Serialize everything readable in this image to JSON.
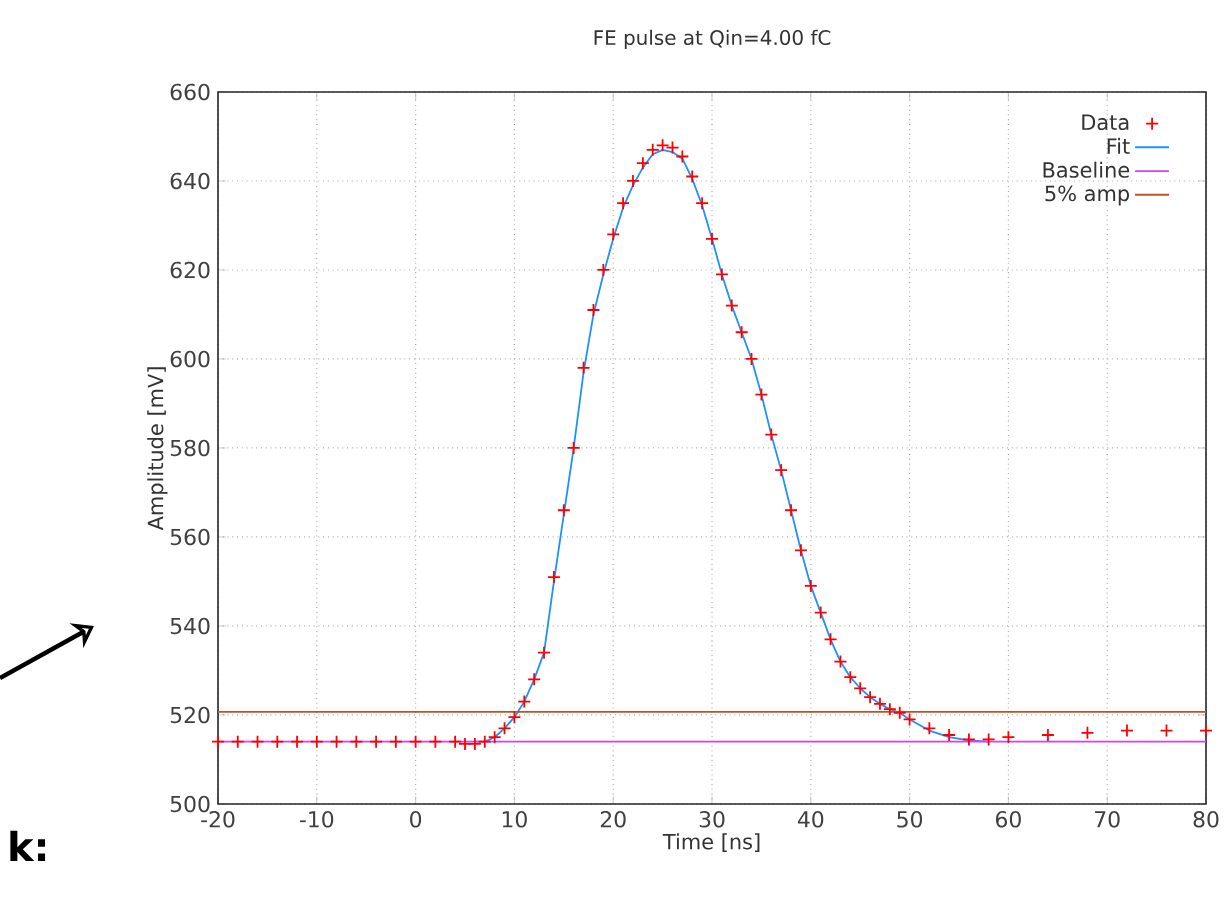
{
  "chart_data": {
    "type": "line",
    "title": "FE pulse at Qin=4.00 fC",
    "xlabel": "Time [ns]",
    "ylabel": "Amplitude [mV]",
    "xlim": [
      -20,
      80
    ],
    "ylim": [
      500,
      660
    ],
    "xticks": [
      -20,
      -10,
      0,
      10,
      20,
      30,
      40,
      50,
      60,
      70,
      80
    ],
    "yticks": [
      500,
      520,
      540,
      560,
      580,
      600,
      620,
      640,
      660
    ],
    "grid": true,
    "legend": "top right",
    "annotations": [
      "k:"
    ],
    "series": [
      {
        "name": "Data",
        "type": "scatter",
        "marker": "cross",
        "color": "#ff0000",
        "x": [
          -20,
          -18,
          -16,
          -14,
          -12,
          -10,
          -8,
          -6,
          -4,
          -2,
          0,
          2,
          4,
          5,
          6,
          7,
          8,
          9,
          10,
          11,
          12,
          13,
          14,
          15,
          16,
          17,
          18,
          19,
          20,
          21,
          22,
          23,
          24,
          25,
          26,
          27,
          28,
          29,
          30,
          31,
          32,
          33,
          34,
          35,
          36,
          37,
          38,
          39,
          40,
          41,
          42,
          43,
          44,
          45,
          46,
          47,
          48,
          49,
          50,
          52,
          54,
          56,
          58,
          60,
          64,
          68,
          72,
          76,
          80
        ],
        "values": [
          514,
          514,
          514,
          514,
          514,
          514,
          514,
          514,
          514,
          514,
          514,
          514,
          514,
          513.5,
          513.5,
          514,
          515,
          517,
          519.5,
          523,
          528,
          534,
          551,
          566,
          580,
          598,
          611,
          620,
          628,
          635,
          640,
          644,
          647,
          648,
          647.5,
          645.5,
          641,
          635,
          627,
          619,
          612,
          606,
          600,
          592,
          583,
          575,
          566,
          557,
          549,
          543,
          537,
          532,
          528.5,
          526,
          524,
          522.5,
          521.3,
          520.5,
          519,
          517,
          515.5,
          514.5,
          514.5,
          515,
          515.5,
          516,
          516.5,
          516.5,
          516.5
        ]
      },
      {
        "name": "Fit",
        "color": "#1e90ff",
        "x": [
          6,
          7,
          8,
          9,
          10,
          11,
          12,
          13,
          14,
          15,
          16,
          17,
          18,
          19,
          20,
          21,
          22,
          23,
          24,
          25,
          26,
          27,
          28,
          29,
          30,
          31,
          32,
          33,
          34,
          35,
          36,
          37,
          38,
          39,
          40,
          41,
          42,
          43,
          44,
          45,
          46,
          47,
          48,
          49,
          50,
          52,
          54,
          56,
          58
        ],
        "values": [
          514,
          514,
          515,
          517,
          519.5,
          523,
          528,
          534,
          550,
          565,
          580,
          597,
          610,
          619,
          627,
          634,
          639,
          643,
          646,
          647,
          646.5,
          645,
          640.5,
          634.5,
          627,
          619,
          612,
          606,
          600,
          592,
          583,
          575,
          566,
          557,
          549,
          543,
          537,
          532,
          528.5,
          526,
          524,
          522.5,
          521.3,
          520.5,
          519,
          516.5,
          515,
          514.3,
          514
        ]
      },
      {
        "name": "Baseline",
        "color": "#cc44ff",
        "x": [
          -20,
          80
        ],
        "values": [
          514,
          514
        ]
      },
      {
        "name": "5% amp",
        "color": "#c0522a",
        "x": [
          -20,
          80
        ],
        "values": [
          520.7,
          520.7
        ]
      }
    ]
  }
}
